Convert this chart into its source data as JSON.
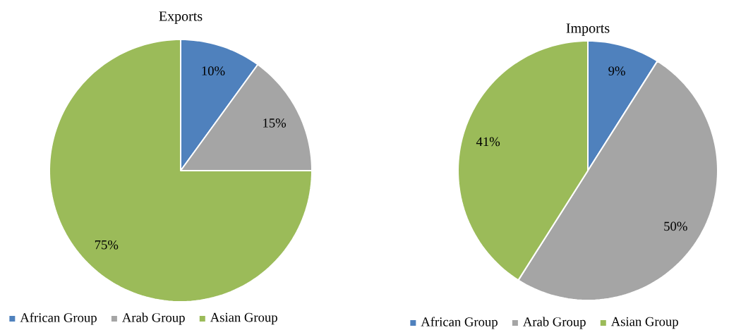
{
  "chart_data": [
    {
      "type": "pie",
      "title": "Exports",
      "categories": [
        "African Group",
        "Arab Group",
        "Asian Group"
      ],
      "values": [
        10,
        15,
        75
      ],
      "colors": [
        "#4f81bd",
        "#a5a5a5",
        "#9bbb59"
      ],
      "value_labels": [
        "10%",
        "15%",
        "75%"
      ],
      "legend": "bottom"
    },
    {
      "type": "pie",
      "title": "Imports",
      "categories": [
        "African Group",
        "Arab Group",
        "Asian Group"
      ],
      "values": [
        9,
        50,
        41
      ],
      "colors": [
        "#4f81bd",
        "#a5a5a5",
        "#9bbb59"
      ],
      "value_labels": [
        "9%",
        "50%",
        "41%"
      ],
      "legend": "bottom"
    }
  ]
}
